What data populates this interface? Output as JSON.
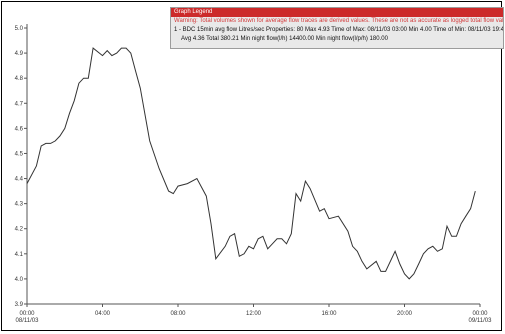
{
  "colors": {
    "series": "#333333",
    "legend_title_bg": "#cc2a2a",
    "warning_text": "#d23a3a",
    "legend_bg": "#e9e9e9",
    "axis": "#555555"
  },
  "legend": {
    "title": "Graph Legend",
    "warning": "Warning: Total volumes shown for average flow traces are derived values. These are not as accurate as logged total flow value",
    "line1": "1 - BDC 15min avg flow Litres/sec Properties: 80 Max 4.93 Time of Max: 08/11/03 03:00 Min 4.00 Time of Min: 08/11/03 19:4",
    "line2": "Avg 4.36 Total 380.21 Min night flow(l/h) 14400.00 Min night flow(l/p/h) 180.00"
  },
  "chart_data": {
    "type": "line",
    "title": "",
    "xlabel": "",
    "ylabel": "",
    "ylim": [
      3.9,
      5.0
    ],
    "xlim": [
      0,
      24
    ],
    "legend_position": "top-right",
    "grid": false,
    "yticks": [
      "3.9",
      "4.0",
      "4.1",
      "4.2",
      "4.3",
      "4.4",
      "4.5",
      "4.6",
      "4.7",
      "4.8",
      "4.9",
      "5.0"
    ],
    "xticks": [
      {
        "hour": 0,
        "label": "00:00",
        "date": "08/11/03"
      },
      {
        "hour": 4,
        "label": "04:00",
        "date": ""
      },
      {
        "hour": 8,
        "label": "08:00",
        "date": ""
      },
      {
        "hour": 12,
        "label": "12:00",
        "date": ""
      },
      {
        "hour": 16,
        "label": "16:00",
        "date": ""
      },
      {
        "hour": 20,
        "label": "20:00",
        "date": ""
      },
      {
        "hour": 24,
        "label": "00:00",
        "date": "09/11/03"
      }
    ],
    "series": [
      {
        "x": [
          0,
          0.5,
          0.75,
          1.0,
          1.25,
          1.5,
          1.75,
          2.0,
          2.25,
          2.5,
          2.75,
          3.0,
          3.25,
          3.5,
          4.0,
          4.25,
          4.5,
          4.75,
          5.0,
          5.25,
          5.5,
          5.75,
          6.0,
          6.5,
          7.0,
          7.5,
          7.75,
          8.0,
          8.5,
          9.0,
          9.5,
          9.75,
          10.0,
          10.5,
          10.75,
          11.0,
          11.25,
          11.5,
          11.75,
          12.0,
          12.25,
          12.5,
          12.75,
          13.0,
          13.25,
          13.5,
          13.75,
          14.0,
          14.25,
          14.5,
          14.75,
          15.0,
          15.5,
          15.75,
          16.0,
          16.5,
          17.0,
          17.25,
          17.5,
          17.75,
          18.0,
          18.5,
          18.75,
          19.0,
          19.5,
          19.75,
          20.0,
          20.25,
          20.5,
          20.75,
          21.0,
          21.25,
          21.5,
          21.75,
          22.0,
          22.25,
          22.5,
          22.75,
          23.0,
          23.25,
          23.5,
          23.75
        ],
        "values": [
          4.38,
          4.45,
          4.53,
          4.54,
          4.54,
          4.55,
          4.57,
          4.6,
          4.66,
          4.71,
          4.78,
          4.8,
          4.8,
          4.92,
          4.89,
          4.91,
          4.89,
          4.9,
          4.92,
          4.92,
          4.9,
          4.83,
          4.76,
          4.55,
          4.44,
          4.35,
          4.34,
          4.37,
          4.38,
          4.4,
          4.33,
          4.22,
          4.08,
          4.13,
          4.17,
          4.18,
          4.09,
          4.1,
          4.13,
          4.12,
          4.16,
          4.17,
          4.12,
          4.14,
          4.16,
          4.16,
          4.14,
          4.18,
          4.34,
          4.31,
          4.39,
          4.36,
          4.27,
          4.28,
          4.24,
          4.25,
          4.19,
          4.13,
          4.11,
          4.07,
          4.04,
          4.07,
          4.03,
          4.03,
          4.11,
          4.06,
          4.02,
          4.0,
          4.02,
          4.06,
          4.1,
          4.12,
          4.13,
          4.11,
          4.12,
          4.21,
          4.17,
          4.17,
          4.22,
          4.25,
          4.28,
          4.35
        ]
      }
    ]
  }
}
